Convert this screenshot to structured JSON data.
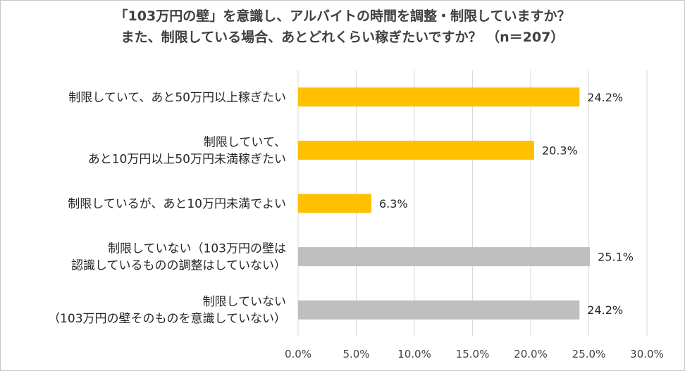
{
  "chart_data": {
    "type": "bar",
    "orientation": "horizontal",
    "title": [
      "「103万円の壁」を意識し、アルバイトの時間を調整・制限していますか？",
      "また、制限している場合、あとどれくらい稼ぎたいですか？ （n＝207）"
    ],
    "categories": [
      [
        "制限していて、あと50万円以上稼ぎたい"
      ],
      [
        "制限していて、",
        "あと10万円以上50万円未満稼ぎたい"
      ],
      [
        "制限しているが、あと10万円未満でよい"
      ],
      [
        "制限していない（103万円の壁は",
        "認識しているものの調整はしていない）"
      ],
      [
        "制限していない",
        "（103万円の壁そのものを意識していない）"
      ]
    ],
    "values": [
      24.2,
      20.3,
      6.3,
      25.1,
      24.2
    ],
    "value_labels": [
      "24.2%",
      "20.3%",
      "6.3%",
      "25.1%",
      "24.2%"
    ],
    "bar_colors": [
      "#FFC000",
      "#FFC000",
      "#FFC000",
      "#BFBFBF",
      "#BFBFBF"
    ],
    "xlim": [
      0,
      30
    ],
    "xticks": [
      "0.0%",
      "5.0%",
      "10.0%",
      "15.0%",
      "20.0%",
      "25.0%",
      "30.0%"
    ],
    "xtick_values": [
      0,
      5,
      10,
      15,
      20,
      25,
      30
    ],
    "grid": true,
    "gridline_color": "#D9D9D9",
    "xlabel": "",
    "ylabel": ""
  }
}
